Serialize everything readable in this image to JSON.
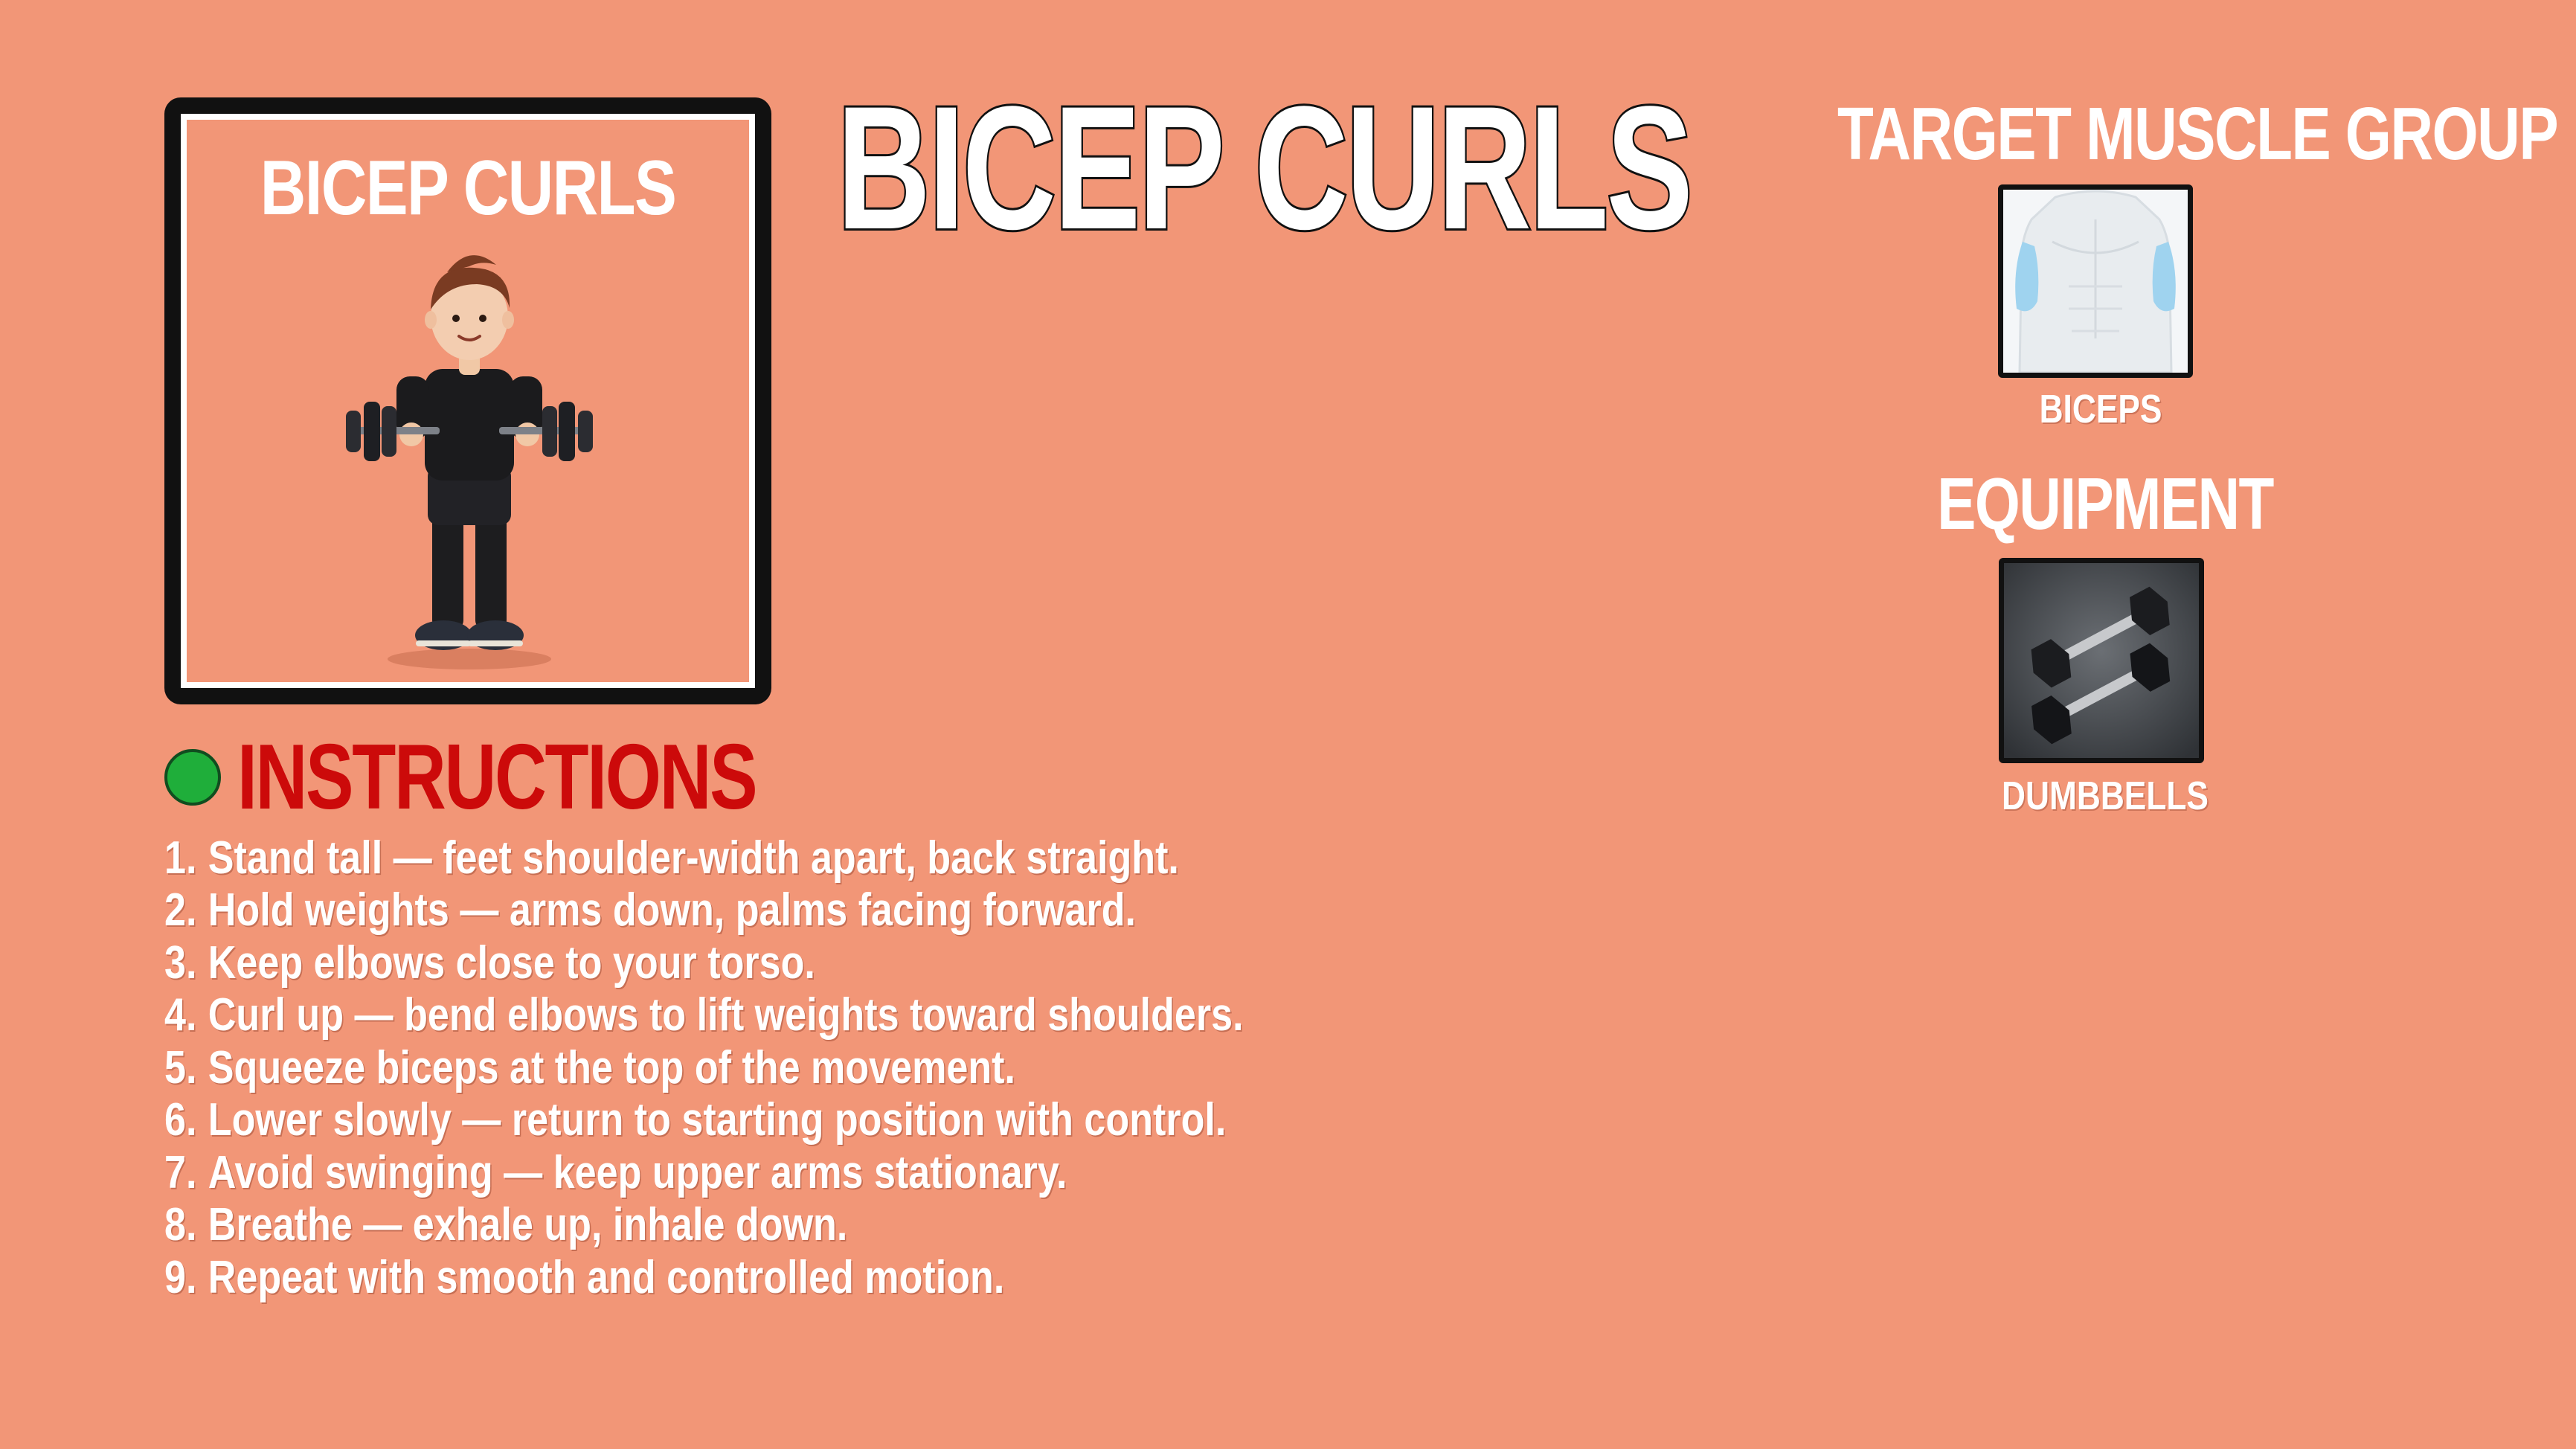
{
  "thumbnail": {
    "title": "BICEP CURLS"
  },
  "page": {
    "title": "BICEP CURLS"
  },
  "instructions": {
    "heading": "INSTRUCTIONS",
    "steps": [
      {
        "num": "1.",
        "text": "Stand tall — feet shoulder-width apart, back straight."
      },
      {
        "num": "2.",
        "text": "Hold weights — arms down, palms facing forward."
      },
      {
        "num": "3.",
        "text": "Keep elbows close to your torso."
      },
      {
        "num": "4.",
        "text": "Curl up — bend elbows to lift weights toward shoulders."
      },
      {
        "num": "5.",
        "text": "Squeeze biceps at the top of the movement."
      },
      {
        "num": "6.",
        "text": "Lower slowly — return to starting position with control."
      },
      {
        "num": "7.",
        "text": "Avoid swinging — keep upper arms stationary."
      },
      {
        "num": "8.",
        "text": "Breathe — exhale up, inhale down."
      },
      {
        "num": "9.",
        "text": "Repeat with smooth and controlled motion."
      }
    ]
  },
  "target": {
    "heading": "TARGET MUSCLE GROUP",
    "muscle_label": "BICEPS"
  },
  "equipment": {
    "heading": "EQUIPMENT",
    "item_label": "DUMBBELLS"
  },
  "colors": {
    "background": "#f29677",
    "instructions_heading": "#cc0a0a",
    "dot": "#1fae3a",
    "muscle_highlight": "#9fd3ef"
  }
}
